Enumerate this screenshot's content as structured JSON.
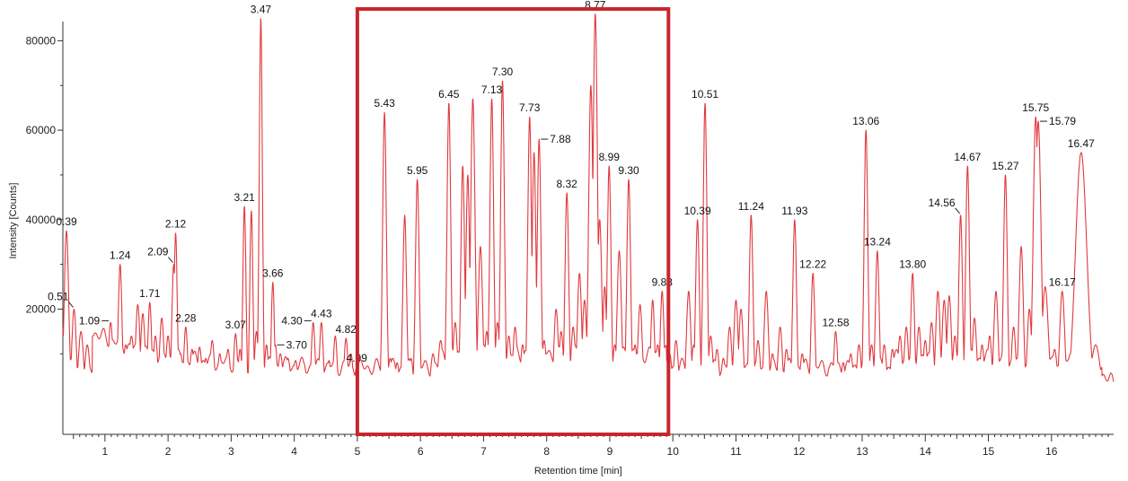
{
  "chart_data": {
    "type": "line",
    "xlabel": "Retention time [min]",
    "ylabel": "Intensity [Counts]",
    "xlim": [
      0,
      17
    ],
    "ylim": [
      0,
      90000
    ],
    "xticks": [
      1,
      2,
      3,
      4,
      5,
      6,
      7,
      8,
      9,
      10,
      11,
      12,
      13,
      14,
      15,
      16
    ],
    "yticks": [
      20000,
      40000,
      60000,
      80000
    ],
    "ytick_labels": [
      "20000",
      "40000",
      "60000",
      "80000"
    ],
    "baseline": 4000,
    "line_color": "#e0393e",
    "highlight_color": "#c8262d",
    "highlight_region": {
      "x": [
        5.0,
        9.93
      ],
      "y": [
        0,
        92000
      ]
    },
    "peaks": [
      {
        "x": 0.3,
        "y": 22000,
        "w": 0.04
      },
      {
        "x": 0.39,
        "y": 37500,
        "w": 0.035
      },
      {
        "x": 0.51,
        "y": 20000,
        "w": 0.035
      },
      {
        "x": 0.62,
        "y": 15000,
        "w": 0.04
      },
      {
        "x": 0.72,
        "y": 12000,
        "w": 0.04
      },
      {
        "x": 0.85,
        "y": 11000,
        "w": 0.04
      },
      {
        "x": 0.95,
        "y": 13000,
        "w": 0.04
      },
      {
        "x": 1.09,
        "y": 17000,
        "w": 0.035
      },
      {
        "x": 1.17,
        "y": 11000,
        "w": 0.04
      },
      {
        "x": 1.24,
        "y": 30000,
        "w": 0.03
      },
      {
        "x": 1.33,
        "y": 12000,
        "w": 0.04
      },
      {
        "x": 1.42,
        "y": 14000,
        "w": 0.04
      },
      {
        "x": 1.52,
        "y": 21000,
        "w": 0.035
      },
      {
        "x": 1.6,
        "y": 19000,
        "w": 0.035
      },
      {
        "x": 1.71,
        "y": 21500,
        "w": 0.03
      },
      {
        "x": 1.8,
        "y": 14000,
        "w": 0.035
      },
      {
        "x": 1.9,
        "y": 18000,
        "w": 0.035
      },
      {
        "x": 2.0,
        "y": 14000,
        "w": 0.035
      },
      {
        "x": 2.09,
        "y": 30000,
        "w": 0.03
      },
      {
        "x": 2.12,
        "y": 37000,
        "w": 0.025
      },
      {
        "x": 2.2,
        "y": 10000,
        "w": 0.035
      },
      {
        "x": 2.28,
        "y": 16000,
        "w": 0.03
      },
      {
        "x": 2.38,
        "y": 11000,
        "w": 0.035
      },
      {
        "x": 2.5,
        "y": 11500,
        "w": 0.035
      },
      {
        "x": 2.6,
        "y": 9000,
        "w": 0.035
      },
      {
        "x": 2.7,
        "y": 13000,
        "w": 0.035
      },
      {
        "x": 2.82,
        "y": 10000,
        "w": 0.035
      },
      {
        "x": 2.95,
        "y": 11000,
        "w": 0.035
      },
      {
        "x": 3.07,
        "y": 14500,
        "w": 0.03
      },
      {
        "x": 3.14,
        "y": 11000,
        "w": 0.03
      },
      {
        "x": 3.21,
        "y": 43000,
        "w": 0.025
      },
      {
        "x": 3.32,
        "y": 42000,
        "w": 0.025
      },
      {
        "x": 3.4,
        "y": 15000,
        "w": 0.03
      },
      {
        "x": 3.47,
        "y": 85000,
        "w": 0.025
      },
      {
        "x": 3.56,
        "y": 12000,
        "w": 0.03
      },
      {
        "x": 3.66,
        "y": 26000,
        "w": 0.025
      },
      {
        "x": 3.7,
        "y": 12000,
        "w": 0.03
      },
      {
        "x": 3.78,
        "y": 10000,
        "w": 0.04
      },
      {
        "x": 3.9,
        "y": 9000,
        "w": 0.04
      },
      {
        "x": 4.02,
        "y": 8500,
        "w": 0.04
      },
      {
        "x": 4.15,
        "y": 8000,
        "w": 0.04
      },
      {
        "x": 4.3,
        "y": 17000,
        "w": 0.03
      },
      {
        "x": 4.43,
        "y": 17000,
        "w": 0.03
      },
      {
        "x": 4.55,
        "y": 8500,
        "w": 0.035
      },
      {
        "x": 4.65,
        "y": 14000,
        "w": 0.03
      },
      {
        "x": 4.82,
        "y": 13500,
        "w": 0.03
      },
      {
        "x": 4.9,
        "y": 10000,
        "w": 0.03
      },
      {
        "x": 4.99,
        "y": 7000,
        "w": 0.035
      },
      {
        "x": 5.2,
        "y": 6000,
        "w": 0.04
      },
      {
        "x": 5.35,
        "y": 6500,
        "w": 0.035
      },
      {
        "x": 5.43,
        "y": 64000,
        "w": 0.03
      },
      {
        "x": 5.52,
        "y": 9000,
        "w": 0.035
      },
      {
        "x": 5.63,
        "y": 8000,
        "w": 0.035
      },
      {
        "x": 5.75,
        "y": 41000,
        "w": 0.03
      },
      {
        "x": 5.85,
        "y": 9000,
        "w": 0.035
      },
      {
        "x": 5.95,
        "y": 49000,
        "w": 0.03
      },
      {
        "x": 6.08,
        "y": 8000,
        "w": 0.035
      },
      {
        "x": 6.2,
        "y": 10000,
        "w": 0.04
      },
      {
        "x": 6.32,
        "y": 13000,
        "w": 0.04
      },
      {
        "x": 6.45,
        "y": 66000,
        "w": 0.03
      },
      {
        "x": 6.55,
        "y": 17000,
        "w": 0.035
      },
      {
        "x": 6.67,
        "y": 52000,
        "w": 0.03
      },
      {
        "x": 6.75,
        "y": 50000,
        "w": 0.03
      },
      {
        "x": 6.83,
        "y": 67000,
        "w": 0.035
      },
      {
        "x": 6.95,
        "y": 34000,
        "w": 0.035
      },
      {
        "x": 7.05,
        "y": 15000,
        "w": 0.035
      },
      {
        "x": 7.13,
        "y": 67000,
        "w": 0.03
      },
      {
        "x": 7.22,
        "y": 17000,
        "w": 0.035
      },
      {
        "x": 7.3,
        "y": 71000,
        "w": 0.03
      },
      {
        "x": 7.4,
        "y": 14000,
        "w": 0.035
      },
      {
        "x": 7.5,
        "y": 16000,
        "w": 0.035
      },
      {
        "x": 7.62,
        "y": 12000,
        "w": 0.035
      },
      {
        "x": 7.73,
        "y": 63000,
        "w": 0.03
      },
      {
        "x": 7.8,
        "y": 55000,
        "w": 0.03
      },
      {
        "x": 7.88,
        "y": 58000,
        "w": 0.03
      },
      {
        "x": 7.96,
        "y": 13000,
        "w": 0.035
      },
      {
        "x": 8.05,
        "y": 8000,
        "w": 0.035
      },
      {
        "x": 8.15,
        "y": 20000,
        "w": 0.035
      },
      {
        "x": 8.23,
        "y": 15000,
        "w": 0.035
      },
      {
        "x": 8.32,
        "y": 46000,
        "w": 0.03
      },
      {
        "x": 8.42,
        "y": 16000,
        "w": 0.035
      },
      {
        "x": 8.52,
        "y": 28000,
        "w": 0.035
      },
      {
        "x": 8.6,
        "y": 22000,
        "w": 0.035
      },
      {
        "x": 8.7,
        "y": 70000,
        "w": 0.035
      },
      {
        "x": 8.77,
        "y": 86000,
        "w": 0.035
      },
      {
        "x": 8.84,
        "y": 40000,
        "w": 0.035
      },
      {
        "x": 8.92,
        "y": 25000,
        "w": 0.03
      },
      {
        "x": 8.99,
        "y": 52000,
        "w": 0.03
      },
      {
        "x": 9.08,
        "y": 12000,
        "w": 0.035
      },
      {
        "x": 9.15,
        "y": 33000,
        "w": 0.035
      },
      {
        "x": 9.22,
        "y": 10000,
        "w": 0.035
      },
      {
        "x": 9.3,
        "y": 49000,
        "w": 0.03
      },
      {
        "x": 9.4,
        "y": 12000,
        "w": 0.035
      },
      {
        "x": 9.48,
        "y": 21000,
        "w": 0.035
      },
      {
        "x": 9.6,
        "y": 10000,
        "w": 0.035
      },
      {
        "x": 9.68,
        "y": 22000,
        "w": 0.03
      },
      {
        "x": 9.76,
        "y": 12000,
        "w": 0.035
      },
      {
        "x": 9.83,
        "y": 24000,
        "w": 0.03
      },
      {
        "x": 9.95,
        "y": 10000,
        "w": 0.035
      },
      {
        "x": 10.05,
        "y": 13000,
        "w": 0.035
      },
      {
        "x": 10.15,
        "y": 8000,
        "w": 0.035
      },
      {
        "x": 10.25,
        "y": 24000,
        "w": 0.035
      },
      {
        "x": 10.33,
        "y": 12000,
        "w": 0.035
      },
      {
        "x": 10.39,
        "y": 40000,
        "w": 0.03
      },
      {
        "x": 10.51,
        "y": 66000,
        "w": 0.03
      },
      {
        "x": 10.6,
        "y": 14000,
        "w": 0.035
      },
      {
        "x": 10.7,
        "y": 11000,
        "w": 0.035
      },
      {
        "x": 10.8,
        "y": 9000,
        "w": 0.035
      },
      {
        "x": 10.9,
        "y": 16000,
        "w": 0.035
      },
      {
        "x": 11.0,
        "y": 22000,
        "w": 0.035
      },
      {
        "x": 11.08,
        "y": 20000,
        "w": 0.035
      },
      {
        "x": 11.24,
        "y": 41000,
        "w": 0.03
      },
      {
        "x": 11.35,
        "y": 13000,
        "w": 0.035
      },
      {
        "x": 11.48,
        "y": 24000,
        "w": 0.035
      },
      {
        "x": 11.58,
        "y": 10000,
        "w": 0.035
      },
      {
        "x": 11.7,
        "y": 16000,
        "w": 0.035
      },
      {
        "x": 11.8,
        "y": 11000,
        "w": 0.035
      },
      {
        "x": 11.93,
        "y": 40000,
        "w": 0.03
      },
      {
        "x": 12.05,
        "y": 10000,
        "w": 0.035
      },
      {
        "x": 12.22,
        "y": 28000,
        "w": 0.03
      },
      {
        "x": 12.35,
        "y": 8000,
        "w": 0.035
      },
      {
        "x": 12.48,
        "y": 7000,
        "w": 0.035
      },
      {
        "x": 12.58,
        "y": 15000,
        "w": 0.03
      },
      {
        "x": 12.7,
        "y": 8000,
        "w": 0.035
      },
      {
        "x": 12.82,
        "y": 10000,
        "w": 0.035
      },
      {
        "x": 12.95,
        "y": 12000,
        "w": 0.035
      },
      {
        "x": 13.06,
        "y": 60000,
        "w": 0.03
      },
      {
        "x": 13.15,
        "y": 12000,
        "w": 0.035
      },
      {
        "x": 13.24,
        "y": 33000,
        "w": 0.03
      },
      {
        "x": 13.35,
        "y": 12000,
        "w": 0.035
      },
      {
        "x": 13.48,
        "y": 11000,
        "w": 0.035
      },
      {
        "x": 13.6,
        "y": 14000,
        "w": 0.035
      },
      {
        "x": 13.7,
        "y": 16000,
        "w": 0.035
      },
      {
        "x": 13.8,
        "y": 28000,
        "w": 0.03
      },
      {
        "x": 13.9,
        "y": 16000,
        "w": 0.035
      },
      {
        "x": 14.0,
        "y": 13000,
        "w": 0.035
      },
      {
        "x": 14.1,
        "y": 17000,
        "w": 0.035
      },
      {
        "x": 14.2,
        "y": 24000,
        "w": 0.035
      },
      {
        "x": 14.3,
        "y": 22000,
        "w": 0.035
      },
      {
        "x": 14.38,
        "y": 23000,
        "w": 0.035
      },
      {
        "x": 14.47,
        "y": 14000,
        "w": 0.035
      },
      {
        "x": 14.56,
        "y": 41000,
        "w": 0.03
      },
      {
        "x": 14.67,
        "y": 52000,
        "w": 0.03
      },
      {
        "x": 14.78,
        "y": 18000,
        "w": 0.035
      },
      {
        "x": 14.9,
        "y": 12000,
        "w": 0.035
      },
      {
        "x": 15.02,
        "y": 14000,
        "w": 0.035
      },
      {
        "x": 15.12,
        "y": 24000,
        "w": 0.035
      },
      {
        "x": 15.27,
        "y": 50000,
        "w": 0.03
      },
      {
        "x": 15.4,
        "y": 16000,
        "w": 0.035
      },
      {
        "x": 15.52,
        "y": 34000,
        "w": 0.035
      },
      {
        "x": 15.65,
        "y": 20000,
        "w": 0.035
      },
      {
        "x": 15.75,
        "y": 63000,
        "w": 0.04
      },
      {
        "x": 15.79,
        "y": 62000,
        "w": 0.045
      },
      {
        "x": 15.9,
        "y": 25000,
        "w": 0.05
      },
      {
        "x": 16.05,
        "y": 11000,
        "w": 0.04
      },
      {
        "x": 16.17,
        "y": 24000,
        "w": 0.04
      },
      {
        "x": 16.3,
        "y": 10000,
        "w": 0.05
      },
      {
        "x": 16.47,
        "y": 55000,
        "w": 0.09
      },
      {
        "x": 16.7,
        "y": 12000,
        "w": 0.07
      }
    ],
    "peak_labels": [
      {
        "text": "0.39",
        "x": 0.39,
        "y": 37500
      },
      {
        "text": "0.51",
        "x": 0.51,
        "y": 20000
      },
      {
        "text": "1.09",
        "x": 1.09,
        "y": 17000
      },
      {
        "text": "1.24",
        "x": 1.24,
        "y": 30000
      },
      {
        "text": "1.71",
        "x": 1.71,
        "y": 21500
      },
      {
        "text": "2.09",
        "x": 2.09,
        "y": 30000
      },
      {
        "text": "2.12",
        "x": 2.12,
        "y": 37000
      },
      {
        "text": "2.28",
        "x": 2.28,
        "y": 16000
      },
      {
        "text": "3.07",
        "x": 3.07,
        "y": 14500
      },
      {
        "text": "3.21",
        "x": 3.21,
        "y": 43000
      },
      {
        "text": "3.47",
        "x": 3.47,
        "y": 85000
      },
      {
        "text": "3.66",
        "x": 3.66,
        "y": 26000
      },
      {
        "text": "3.70",
        "x": 3.7,
        "y": 12000
      },
      {
        "text": "4.30",
        "x": 4.3,
        "y": 17000
      },
      {
        "text": "4.43",
        "x": 4.43,
        "y": 17000
      },
      {
        "text": "4.82",
        "x": 4.82,
        "y": 13500
      },
      {
        "text": "4.99",
        "x": 4.99,
        "y": 7000
      },
      {
        "text": "5.43",
        "x": 5.43,
        "y": 64000
      },
      {
        "text": "5.95",
        "x": 5.95,
        "y": 49000
      },
      {
        "text": "6.45",
        "x": 6.45,
        "y": 66000
      },
      {
        "text": "7.13",
        "x": 7.13,
        "y": 67000
      },
      {
        "text": "7.30",
        "x": 7.3,
        "y": 71000
      },
      {
        "text": "7.73",
        "x": 7.73,
        "y": 63000
      },
      {
        "text": "7.88",
        "x": 7.88,
        "y": 58000
      },
      {
        "text": "8.32",
        "x": 8.32,
        "y": 46000
      },
      {
        "text": "8.77",
        "x": 8.77,
        "y": 86000
      },
      {
        "text": "8.99",
        "x": 8.99,
        "y": 52000
      },
      {
        "text": "9.30",
        "x": 9.3,
        "y": 49000
      },
      {
        "text": "9.83",
        "x": 9.83,
        "y": 24000
      },
      {
        "text": "10.39",
        "x": 10.39,
        "y": 40000
      },
      {
        "text": "10.51",
        "x": 10.51,
        "y": 66000
      },
      {
        "text": "11.24",
        "x": 11.24,
        "y": 41000
      },
      {
        "text": "11.93",
        "x": 11.93,
        "y": 40000
      },
      {
        "text": "12.22",
        "x": 12.22,
        "y": 28000
      },
      {
        "text": "12.58",
        "x": 12.58,
        "y": 15000
      },
      {
        "text": "13.06",
        "x": 13.06,
        "y": 60000
      },
      {
        "text": "13.24",
        "x": 13.24,
        "y": 33000
      },
      {
        "text": "13.80",
        "x": 13.8,
        "y": 28000
      },
      {
        "text": "14.56",
        "x": 14.56,
        "y": 41000
      },
      {
        "text": "14.67",
        "x": 14.67,
        "y": 52000
      },
      {
        "text": "15.27",
        "x": 15.27,
        "y": 50000
      },
      {
        "text": "15.75",
        "x": 15.75,
        "y": 63000
      },
      {
        "text": "15.79",
        "x": 15.79,
        "y": 62000
      },
      {
        "text": "16.17",
        "x": 16.17,
        "y": 24000
      },
      {
        "text": "16.47",
        "x": 16.47,
        "y": 55000
      }
    ]
  }
}
